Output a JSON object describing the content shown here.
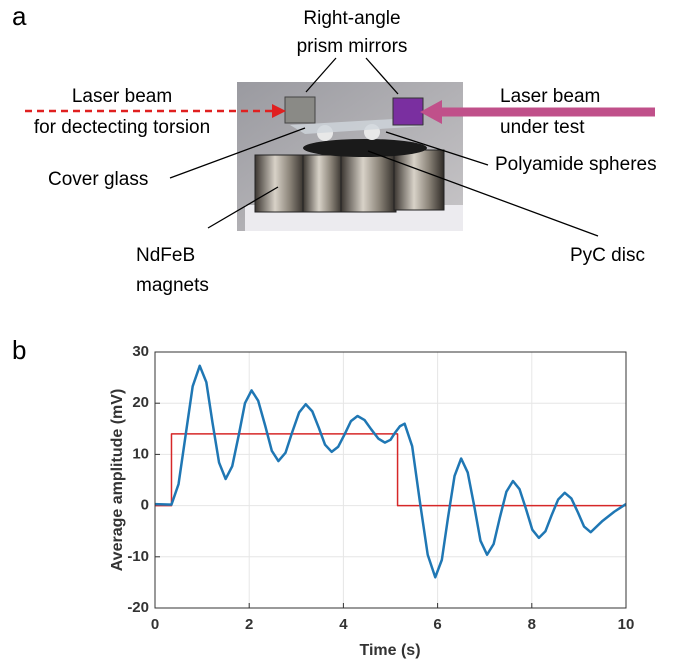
{
  "panel_labels": [
    "a",
    "b"
  ],
  "photo": {
    "prism_label": [
      "Right-angle",
      "prism mirrors"
    ],
    "left_beam_label": [
      "Laser beam",
      "for dectecting torsion"
    ],
    "right_beam_label": [
      "Laser beam",
      "under test"
    ],
    "cover_glass_label": "Cover glass",
    "spheres_label": "Polyamide spheres",
    "magnets_label": [
      "NdFeB",
      "magnets"
    ],
    "disc_label": "PyC disc"
  },
  "chart_data": {
    "type": "line",
    "xlabel": "Time (s)",
    "ylabel": "Average amplitude (mV)",
    "xlim": [
      0,
      10
    ],
    "ylim": [
      -20,
      30
    ],
    "xticks": [
      0,
      2,
      4,
      6,
      8,
      10
    ],
    "yticks": [
      -20,
      -10,
      0,
      10,
      20,
      30
    ],
    "grid": true,
    "series": [
      {
        "color": "#1f77b4",
        "x": [
          0,
          0.35,
          0.5,
          0.65,
          0.8,
          0.95,
          1.09,
          1.22,
          1.36,
          1.5,
          1.64,
          1.78,
          1.91,
          2.05,
          2.19,
          2.34,
          2.48,
          2.62,
          2.77,
          2.91,
          3.06,
          3.2,
          3.34,
          3.48,
          3.61,
          3.75,
          3.89,
          4.03,
          4.16,
          4.3,
          4.45,
          4.59,
          4.74,
          4.88,
          5.0,
          5.09,
          5.2,
          5.3,
          5.46,
          5.62,
          5.79,
          5.95,
          6.09,
          6.22,
          6.36,
          6.5,
          6.64,
          6.78,
          6.91,
          7.05,
          7.19,
          7.32,
          7.46,
          7.6,
          7.74,
          7.88,
          8.01,
          8.15,
          8.29,
          8.42,
          8.56,
          8.7,
          8.84,
          8.98,
          9.11,
          9.25,
          9.5,
          9.75,
          10
        ],
        "values": [
          0.3,
          0.2,
          4.2,
          13.75,
          23.3,
          27.3,
          24.1,
          16.25,
          8.4,
          5.2,
          7.7,
          13.85,
          20.0,
          22.5,
          20.5,
          15.6,
          10.7,
          8.7,
          10.3,
          14.25,
          18.2,
          19.8,
          18.4,
          15.15,
          11.9,
          10.5,
          11.5,
          14.0,
          16.5,
          17.5,
          16.7,
          14.9,
          13.1,
          12.3,
          12.85,
          14.15,
          15.5,
          16.0,
          11.6,
          1.0,
          -9.6,
          -14.0,
          -10.6,
          -2.4,
          5.8,
          9.2,
          6.45,
          -0.2,
          -6.85,
          -9.6,
          -7.5,
          -2.4,
          2.7,
          4.8,
          3.2,
          -0.75,
          -4.7,
          -6.3,
          -5.0,
          -1.9,
          1.2,
          2.5,
          1.4,
          -1.35,
          -4.1,
          -5.2,
          -3.0,
          -1.2,
          0.3
        ]
      },
      {
        "color": "#d62728",
        "x": [
          0,
          0.35,
          0.35,
          5.15,
          5.15,
          10
        ],
        "values": [
          0,
          0,
          14,
          14,
          0,
          0
        ]
      }
    ]
  }
}
